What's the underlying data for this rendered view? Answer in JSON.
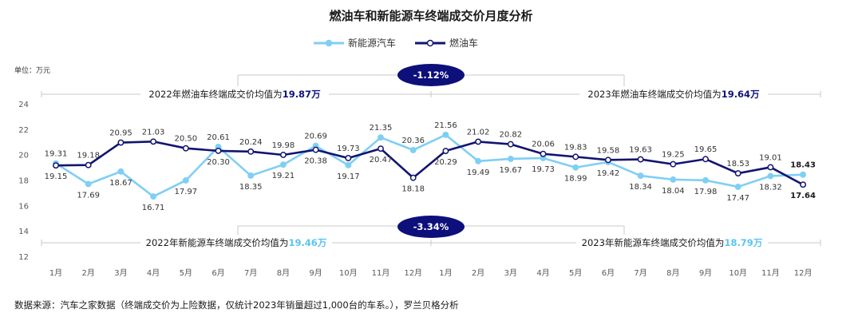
{
  "chart_data": {
    "type": "line",
    "title": "燃油车和新能源车终端成交价月度分析",
    "unit_label": "单位：万元",
    "categories": [
      "1月",
      "2月",
      "3月",
      "4月",
      "5月",
      "6月",
      "7月",
      "8月",
      "9月",
      "10月",
      "11月",
      "12月",
      "1月",
      "2月",
      "3月",
      "4月",
      "5月",
      "6月",
      "7月",
      "8月",
      "9月",
      "10月",
      "11月",
      "12月"
    ],
    "ylim": [
      12,
      24
    ],
    "yticks": [
      "12",
      "14",
      "16",
      "18",
      "20",
      "22",
      "24"
    ],
    "grid": false,
    "legend_position": "top-center",
    "series": [
      {
        "name": "新能源汽车",
        "color": "#7fcff4",
        "values": [
          19.31,
          17.69,
          18.67,
          16.71,
          17.97,
          20.61,
          18.35,
          19.21,
          20.69,
          19.17,
          21.35,
          20.36,
          21.56,
          19.49,
          19.67,
          19.73,
          18.99,
          19.42,
          18.34,
          18.04,
          17.98,
          17.47,
          18.32,
          18.43
        ],
        "labels": [
          "19.31",
          "17.69",
          "18.67",
          "16.71",
          "17.97",
          "20.61",
          "18.35",
          "19.21",
          "20.69",
          "19.17",
          "21.35",
          "20.36",
          "21.56",
          "19.49",
          "19.67",
          "19.73",
          "18.99",
          "19.42",
          "18.34",
          "18.04",
          "17.98",
          "17.47",
          "18.32",
          "18.43"
        ]
      },
      {
        "name": "燃油车",
        "color": "#121470",
        "values": [
          19.15,
          19.18,
          20.95,
          21.03,
          20.5,
          20.3,
          20.24,
          19.98,
          20.38,
          19.73,
          20.47,
          18.18,
          20.29,
          21.02,
          20.82,
          20.06,
          19.83,
          19.58,
          19.63,
          19.25,
          19.65,
          18.53,
          19.01,
          17.64
        ],
        "labels": [
          "19.15",
          "19.18",
          "20.95",
          "21.03",
          "20.50",
          "20.30",
          "20.24",
          "19.98",
          "20.38",
          "19.73",
          "20.47",
          "18.18",
          "20.29",
          "21.02",
          "20.82",
          "20.06",
          "19.83",
          "19.58",
          "19.63",
          "19.25",
          "19.65",
          "18.53",
          "19.01",
          "17.64"
        ]
      }
    ],
    "annotations": {
      "fuel_2022_prefix": "2022年燃油车终端成交价均值为",
      "fuel_2022_value": "19.87万",
      "fuel_2023_prefix": "2023年燃油车终端成交价均值为",
      "fuel_2023_value": "19.64万",
      "fuel_change": "-1.12%",
      "nev_2022_prefix": "2022年新能源车终端成交价均值为",
      "nev_2022_value": "19.46万",
      "nev_2023_prefix": "2023年新能源车终端成交价均值为",
      "nev_2023_value": "18.79万",
      "nev_change": "-3.34%"
    },
    "colors": {
      "badge": "#0d0f7a",
      "fuel_accent": "#10137a",
      "nev_accent": "#5bc4f2"
    }
  },
  "footer": {
    "source": "数据来源：汽车之家数据（终端成交价为上险数据，仅统计2023年销量超过1,000台的车系。），罗兰贝格分析"
  }
}
